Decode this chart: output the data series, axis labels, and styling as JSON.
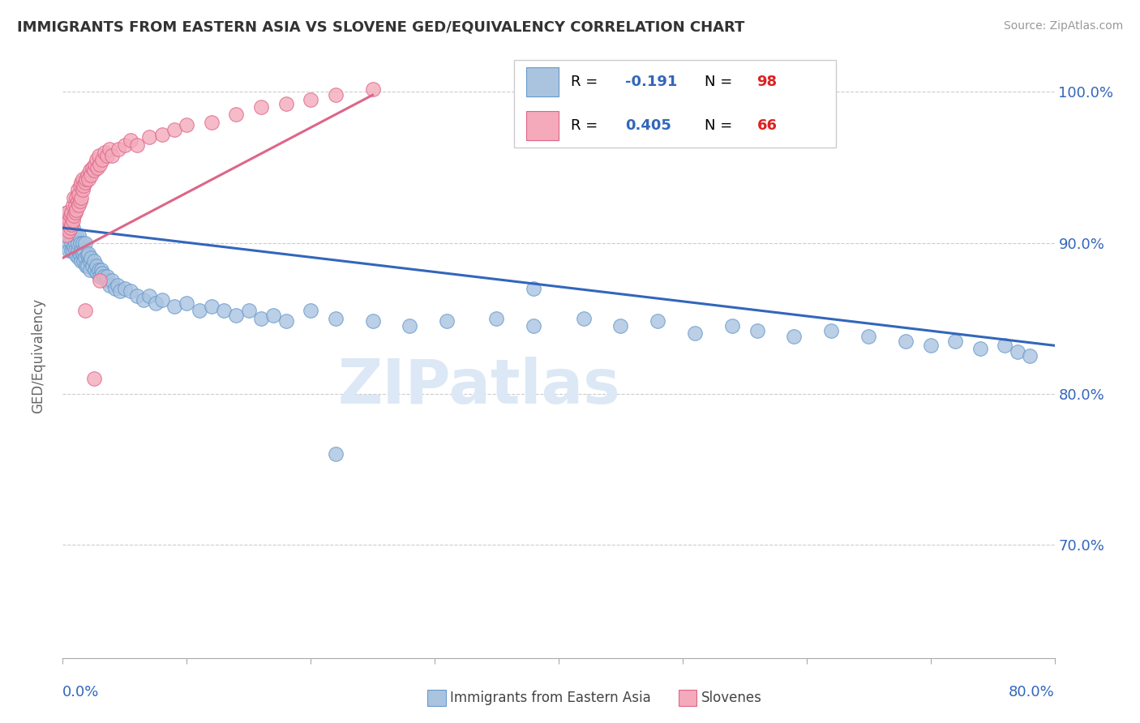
{
  "title": "IMMIGRANTS FROM EASTERN ASIA VS SLOVENE GED/EQUIVALENCY CORRELATION CHART",
  "source": "Source: ZipAtlas.com",
  "ylabel": "GED/Equivalency",
  "xmin": 0.0,
  "xmax": 0.8,
  "ymin": 0.625,
  "ymax": 1.025,
  "yticks": [
    0.7,
    0.8,
    0.9,
    1.0
  ],
  "ytick_labels": [
    "70.0%",
    "80.0%",
    "90.0%",
    "100.0%"
  ],
  "watermark": "ZIPatlas",
  "R_blue": -0.191,
  "N_blue": 98,
  "R_pink": 0.405,
  "N_pink": 66,
  "blue_color": "#aac4e0",
  "blue_edge": "#6699cc",
  "pink_color": "#f4aabb",
  "pink_edge": "#dd6688",
  "blue_line_color": "#3366bb",
  "pink_line_color": "#dd6688",
  "right_label_color": "#3366bb",
  "legend_R_color": "#3366bb",
  "legend_N_color": "#dd2222",
  "scatter_blue_x": [
    0.002,
    0.003,
    0.004,
    0.004,
    0.005,
    0.005,
    0.006,
    0.006,
    0.007,
    0.007,
    0.008,
    0.008,
    0.009,
    0.009,
    0.01,
    0.01,
    0.011,
    0.011,
    0.012,
    0.012,
    0.013,
    0.013,
    0.014,
    0.014,
    0.015,
    0.015,
    0.016,
    0.016,
    0.017,
    0.017,
    0.018,
    0.018,
    0.019,
    0.02,
    0.02,
    0.021,
    0.022,
    0.022,
    0.023,
    0.024,
    0.025,
    0.026,
    0.027,
    0.028,
    0.029,
    0.03,
    0.031,
    0.032,
    0.033,
    0.035,
    0.036,
    0.038,
    0.04,
    0.042,
    0.044,
    0.046,
    0.05,
    0.055,
    0.06,
    0.065,
    0.07,
    0.075,
    0.08,
    0.09,
    0.1,
    0.11,
    0.12,
    0.13,
    0.14,
    0.15,
    0.16,
    0.17,
    0.18,
    0.2,
    0.22,
    0.25,
    0.28,
    0.31,
    0.35,
    0.38,
    0.42,
    0.45,
    0.48,
    0.51,
    0.54,
    0.56,
    0.59,
    0.62,
    0.65,
    0.68,
    0.7,
    0.72,
    0.74,
    0.76,
    0.77,
    0.78,
    0.22,
    0.38
  ],
  "scatter_blue_y": [
    0.905,
    0.91,
    0.915,
    0.92,
    0.9,
    0.895,
    0.91,
    0.905,
    0.9,
    0.895,
    0.91,
    0.895,
    0.905,
    0.898,
    0.9,
    0.895,
    0.905,
    0.892,
    0.895,
    0.9,
    0.905,
    0.89,
    0.9,
    0.892,
    0.895,
    0.888,
    0.893,
    0.9,
    0.888,
    0.895,
    0.89,
    0.9,
    0.885,
    0.892,
    0.885,
    0.893,
    0.888,
    0.882,
    0.89,
    0.885,
    0.888,
    0.882,
    0.885,
    0.88,
    0.882,
    0.878,
    0.882,
    0.88,
    0.878,
    0.875,
    0.878,
    0.872,
    0.875,
    0.87,
    0.872,
    0.868,
    0.87,
    0.868,
    0.865,
    0.862,
    0.865,
    0.86,
    0.862,
    0.858,
    0.86,
    0.855,
    0.858,
    0.855,
    0.852,
    0.855,
    0.85,
    0.852,
    0.848,
    0.855,
    0.85,
    0.848,
    0.845,
    0.848,
    0.85,
    0.845,
    0.85,
    0.845,
    0.848,
    0.84,
    0.845,
    0.842,
    0.838,
    0.842,
    0.838,
    0.835,
    0.832,
    0.835,
    0.83,
    0.832,
    0.828,
    0.825,
    0.76,
    0.87
  ],
  "scatter_pink_x": [
    0.002,
    0.003,
    0.003,
    0.004,
    0.004,
    0.005,
    0.005,
    0.006,
    0.006,
    0.007,
    0.007,
    0.008,
    0.008,
    0.009,
    0.009,
    0.01,
    0.01,
    0.011,
    0.011,
    0.012,
    0.012,
    0.013,
    0.013,
    0.014,
    0.014,
    0.015,
    0.015,
    0.016,
    0.016,
    0.017,
    0.018,
    0.019,
    0.02,
    0.021,
    0.022,
    0.023,
    0.024,
    0.025,
    0.026,
    0.027,
    0.028,
    0.029,
    0.03,
    0.032,
    0.034,
    0.036,
    0.038,
    0.04,
    0.045,
    0.05,
    0.055,
    0.06,
    0.07,
    0.08,
    0.09,
    0.1,
    0.12,
    0.14,
    0.16,
    0.18,
    0.2,
    0.22,
    0.25,
    0.03,
    0.018,
    0.025
  ],
  "scatter_pink_y": [
    0.91,
    0.915,
    0.905,
    0.92,
    0.912,
    0.915,
    0.908,
    0.918,
    0.91,
    0.92,
    0.912,
    0.915,
    0.925,
    0.918,
    0.93,
    0.92,
    0.925,
    0.93,
    0.922,
    0.928,
    0.935,
    0.925,
    0.932,
    0.928,
    0.938,
    0.93,
    0.94,
    0.935,
    0.942,
    0.938,
    0.94,
    0.942,
    0.945,
    0.942,
    0.948,
    0.945,
    0.95,
    0.948,
    0.952,
    0.955,
    0.95,
    0.958,
    0.952,
    0.955,
    0.96,
    0.958,
    0.962,
    0.958,
    0.962,
    0.965,
    0.968,
    0.965,
    0.97,
    0.972,
    0.975,
    0.978,
    0.98,
    0.985,
    0.99,
    0.992,
    0.995,
    0.998,
    1.002,
    0.875,
    0.855,
    0.81
  ],
  "blue_trendline_x": [
    0.0,
    0.8
  ],
  "blue_trendline_y": [
    0.91,
    0.832
  ],
  "pink_trendline_x": [
    0.0,
    0.25
  ],
  "pink_trendline_y": [
    0.89,
    0.998
  ]
}
